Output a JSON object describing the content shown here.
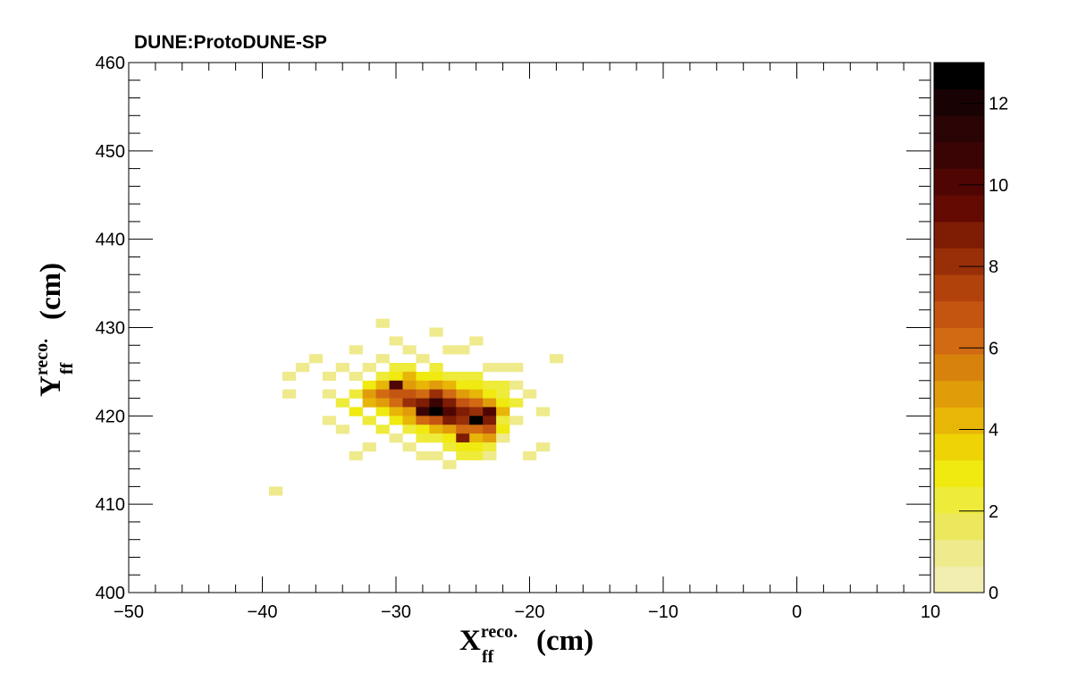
{
  "chart_data": {
    "type": "heatmap",
    "title": "DUNE:ProtoDUNE-SP",
    "xlabel": {
      "main": "X",
      "sup": "reco.",
      "sub": "ff",
      "unit": "(cm)"
    },
    "ylabel": {
      "main": "Y",
      "sup": "reco.",
      "sub": "ff",
      "unit": "(cm)"
    },
    "xlim": [
      -50,
      10
    ],
    "ylim": [
      400,
      460
    ],
    "x_ticks": [
      -50,
      -40,
      -30,
      -20,
      -10,
      0,
      10
    ],
    "x_tick_labels": [
      "−50",
      "−40",
      "−30",
      "−20",
      "−10",
      "0",
      "10"
    ],
    "y_ticks": [
      400,
      410,
      420,
      430,
      440,
      450,
      460
    ],
    "y_tick_labels": [
      "400",
      "410",
      "420",
      "430",
      "440",
      "450",
      "460"
    ],
    "z_range": [
      0,
      13
    ],
    "z_ticks": [
      0,
      2,
      4,
      6,
      8,
      10,
      12
    ],
    "z_tick_labels": [
      "0",
      "2",
      "4",
      "6",
      "8",
      "10",
      "12"
    ],
    "palette": [
      "#f2eeb0",
      "#efea8c",
      "#ece85e",
      "#eeeb3a",
      "#f0ea10",
      "#eed406",
      "#e8b607",
      "#e19c0a",
      "#d8820e",
      "#d16a12",
      "#c45511",
      "#b1420c",
      "#982f08",
      "#7e1d04",
      "#640a02",
      "#4f0603",
      "#3a0405",
      "#2a0305",
      "#190203",
      "#000000"
    ],
    "bin_width": 1.0,
    "bin_height": 1.0,
    "bins": [
      [
        -39.0,
        411.5,
        1
      ],
      [
        -38.0,
        424.5,
        1
      ],
      [
        -38.0,
        422.5,
        1
      ],
      [
        -37.0,
        425.5,
        1
      ],
      [
        -36.0,
        426.5,
        1
      ],
      [
        -35.0,
        424.5,
        1
      ],
      [
        -35.0,
        422.5,
        1
      ],
      [
        -35.0,
        419.5,
        1
      ],
      [
        -34.0,
        425.5,
        1
      ],
      [
        -34.0,
        421.5,
        2
      ],
      [
        -34.0,
        418.5,
        1
      ],
      [
        -33.0,
        427.5,
        1
      ],
      [
        -33.0,
        424.5,
        1
      ],
      [
        -33.0,
        422.5,
        2
      ],
      [
        -33.0,
        420.5,
        3
      ],
      [
        -33.0,
        415.5,
        1
      ],
      [
        -32.0,
        425.5,
        1
      ],
      [
        -32.0,
        423.5,
        3
      ],
      [
        -32.0,
        422.5,
        5
      ],
      [
        -32.0,
        421.5,
        4
      ],
      [
        -32.0,
        419.5,
        2
      ],
      [
        -32.0,
        416.5,
        1
      ],
      [
        -31.0,
        430.5,
        1
      ],
      [
        -31.0,
        426.5,
        1
      ],
      [
        -31.0,
        424.5,
        2
      ],
      [
        -31.0,
        423.5,
        4
      ],
      [
        -31.0,
        422.5,
        6
      ],
      [
        -31.0,
        421.5,
        5
      ],
      [
        -31.0,
        420.5,
        3
      ],
      [
        -31.0,
        418.5,
        2
      ],
      [
        -30.0,
        428.5,
        1
      ],
      [
        -30.0,
        425.5,
        2
      ],
      [
        -30.0,
        424.5,
        3
      ],
      [
        -30.0,
        423.5,
        10
      ],
      [
        -30.0,
        422.5,
        7
      ],
      [
        -30.0,
        421.5,
        6
      ],
      [
        -30.0,
        420.5,
        4
      ],
      [
        -30.0,
        419.5,
        3
      ],
      [
        -30.0,
        417.5,
        1
      ],
      [
        -29.0,
        427.5,
        1
      ],
      [
        -29.0,
        425.5,
        2
      ],
      [
        -29.0,
        424.5,
        4
      ],
      [
        -29.0,
        423.5,
        5
      ],
      [
        -29.0,
        422.5,
        7
      ],
      [
        -29.0,
        421.5,
        8
      ],
      [
        -29.0,
        420.5,
        5
      ],
      [
        -29.0,
        419.5,
        4
      ],
      [
        -29.0,
        418.5,
        2
      ],
      [
        -29.0,
        416.5,
        1
      ],
      [
        -28.0,
        426.5,
        1
      ],
      [
        -28.0,
        424.5,
        3
      ],
      [
        -28.0,
        423.5,
        4
      ],
      [
        -28.0,
        422.5,
        6
      ],
      [
        -28.0,
        421.5,
        9
      ],
      [
        -28.0,
        420.5,
        11
      ],
      [
        -28.0,
        419.5,
        6
      ],
      [
        -28.0,
        418.5,
        3
      ],
      [
        -28.0,
        417.5,
        2
      ],
      [
        -28.0,
        415.5,
        1
      ],
      [
        -27.0,
        429.5,
        1
      ],
      [
        -27.0,
        425.5,
        2
      ],
      [
        -27.0,
        424.5,
        3
      ],
      [
        -27.0,
        423.5,
        5
      ],
      [
        -27.0,
        422.5,
        8
      ],
      [
        -27.0,
        421.5,
        11
      ],
      [
        -27.0,
        420.5,
        13
      ],
      [
        -27.0,
        419.5,
        7
      ],
      [
        -27.0,
        418.5,
        4
      ],
      [
        -27.0,
        417.5,
        2
      ],
      [
        -27.0,
        415.5,
        1
      ],
      [
        -26.0,
        427.5,
        1
      ],
      [
        -26.0,
        424.5,
        2
      ],
      [
        -26.0,
        423.5,
        4
      ],
      [
        -26.0,
        422.5,
        6
      ],
      [
        -26.0,
        421.5,
        9
      ],
      [
        -26.0,
        420.5,
        10
      ],
      [
        -26.0,
        419.5,
        9
      ],
      [
        -26.0,
        418.5,
        5
      ],
      [
        -26.0,
        417.5,
        3
      ],
      [
        -26.0,
        416.5,
        2
      ],
      [
        -26.0,
        414.5,
        1
      ],
      [
        -25.0,
        427.5,
        1
      ],
      [
        -25.0,
        424.5,
        2
      ],
      [
        -25.0,
        423.5,
        3
      ],
      [
        -25.0,
        422.5,
        5
      ],
      [
        -25.0,
        421.5,
        7
      ],
      [
        -25.0,
        420.5,
        9
      ],
      [
        -25.0,
        419.5,
        8
      ],
      [
        -25.0,
        418.5,
        6
      ],
      [
        -25.0,
        417.5,
        9
      ],
      [
        -25.0,
        416.5,
        3
      ],
      [
        -25.0,
        415.5,
        2
      ],
      [
        -24.0,
        428.5,
        1
      ],
      [
        -24.0,
        424.5,
        2
      ],
      [
        -24.0,
        423.5,
        3
      ],
      [
        -24.0,
        422.5,
        4
      ],
      [
        -24.0,
        421.5,
        6
      ],
      [
        -24.0,
        420.5,
        8
      ],
      [
        -24.0,
        419.5,
        13
      ],
      [
        -24.0,
        418.5,
        6
      ],
      [
        -24.0,
        417.5,
        4
      ],
      [
        -24.0,
        416.5,
        3
      ],
      [
        -24.0,
        415.5,
        2
      ],
      [
        -23.0,
        425.5,
        1
      ],
      [
        -23.0,
        423.5,
        2
      ],
      [
        -23.0,
        422.5,
        3
      ],
      [
        -23.0,
        421.5,
        5
      ],
      [
        -23.0,
        420.5,
        10
      ],
      [
        -23.0,
        419.5,
        9
      ],
      [
        -23.0,
        418.5,
        7
      ],
      [
        -23.0,
        417.5,
        5
      ],
      [
        -23.0,
        416.5,
        2
      ],
      [
        -23.0,
        415.5,
        1
      ],
      [
        -22.0,
        425.5,
        1
      ],
      [
        -22.0,
        423.5,
        2
      ],
      [
        -22.0,
        422.5,
        2
      ],
      [
        -22.0,
        421.5,
        3
      ],
      [
        -22.0,
        420.5,
        4
      ],
      [
        -22.0,
        419.5,
        2
      ],
      [
        -22.0,
        418.5,
        3
      ],
      [
        -22.0,
        417.5,
        1
      ],
      [
        -21.0,
        425.5,
        1
      ],
      [
        -21.0,
        423.5,
        1
      ],
      [
        -21.0,
        421.5,
        2
      ],
      [
        -21.0,
        419.5,
        1
      ],
      [
        -20.0,
        422.5,
        1
      ],
      [
        -20.0,
        415.5,
        1
      ],
      [
        -19.0,
        420.5,
        1
      ],
      [
        -19.0,
        416.5,
        1
      ],
      [
        -18.0,
        426.5,
        1
      ]
    ]
  }
}
